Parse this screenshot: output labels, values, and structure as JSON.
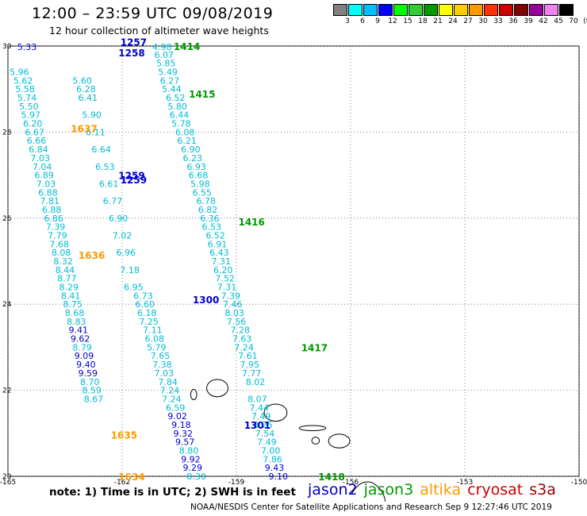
{
  "title": "12:00 – 23:59 UTC 09/08/2019",
  "subtitle": "12 hour collection of altimeter wave heights",
  "note": "note: 1) Time is in UTC; 2) SWH is in feet",
  "credit": "NOAA/NESDIS Center for Satellite Applications and Research   Sep  9 12:27:46 UTC 2019",
  "satellites": [
    {
      "name": "jason2",
      "color": "#0000cc"
    },
    {
      "name": "jason3",
      "color": "#009900"
    },
    {
      "name": "altika",
      "color": "#ff9900"
    },
    {
      "name": "cryosat",
      "color": "#cc0000"
    },
    {
      "name": "s3a",
      "color": "#990000"
    }
  ],
  "colorbar": {
    "labels": [
      "3",
      "6",
      "9",
      "12",
      "15",
      "18",
      "21",
      "24",
      "27",
      "30",
      "33",
      "36",
      "39",
      "42",
      "45",
      "70",
      "(ft)"
    ],
    "colors": [
      "#808080",
      "#00ffff",
      "#00bfff",
      "#0000ff",
      "#00ff00",
      "#33cc33",
      "#009900",
      "#ffff00",
      "#ffcc00",
      "#ff9900",
      "#ff3300",
      "#cc0000",
      "#800000",
      "#990099",
      "#ee82ee",
      "#000000"
    ]
  },
  "map": {
    "lon_range": [
      -165,
      -150
    ],
    "lat_range": [
      20,
      30
    ],
    "lon_ticks": [
      "-165",
      "-162",
      "-159",
      "-156",
      "-153",
      "-150"
    ],
    "lat_ticks": [
      "30",
      "28",
      "26",
      "24",
      "22",
      "20"
    ],
    "lon_tick_values": [
      -165,
      -162,
      -159,
      -156,
      -153,
      -150
    ],
    "lat_tick_values": [
      30,
      28,
      26,
      24,
      22,
      20
    ]
  },
  "pass_labels": [
    {
      "text": "1257",
      "lon": -161.7,
      "lat": 30.08,
      "sat": "jason2"
    },
    {
      "text": "1258",
      "lon": -161.75,
      "lat": 29.83,
      "sat": "jason2"
    },
    {
      "text": "1414",
      "lon": -160.3,
      "lat": 29.98,
      "sat": "jason3"
    },
    {
      "text": "1415",
      "lon": -159.9,
      "lat": 28.87,
      "sat": "jason3"
    },
    {
      "text": "1637",
      "lon": -163.0,
      "lat": 28.07,
      "sat": "altika"
    },
    {
      "text": "1259",
      "lon": -161.75,
      "lat": 26.98,
      "sat": "jason2"
    },
    {
      "text": "1259",
      "lon": -161.7,
      "lat": 26.88,
      "sat": "jason2"
    },
    {
      "text": "1416",
      "lon": -158.6,
      "lat": 25.9,
      "sat": "jason3"
    },
    {
      "text": "1636",
      "lon": -162.8,
      "lat": 25.13,
      "sat": "altika"
    },
    {
      "text": "1300",
      "lon": -159.8,
      "lat": 24.1,
      "sat": "jason2"
    },
    {
      "text": "1417",
      "lon": -156.95,
      "lat": 22.98,
      "sat": "jason3"
    },
    {
      "text": "1301",
      "lon": -158.45,
      "lat": 21.18,
      "sat": "jason2"
    },
    {
      "text": "1635",
      "lon": -161.95,
      "lat": 20.95,
      "sat": "altika"
    },
    {
      "text": "1418",
      "lon": -156.5,
      "lat": 19.98,
      "sat": "jason3"
    },
    {
      "text": "1634",
      "lon": -161.75,
      "lat": 19.98,
      "sat": "altika"
    }
  ],
  "observations": [
    {
      "v": "5.33",
      "lon": -164.5,
      "lat": 29.98,
      "sat": "jason2"
    },
    {
      "v": "4.98",
      "lon": -160.95,
      "lat": 29.98,
      "sat": "jason3"
    },
    {
      "v": "6.07",
      "lon": -160.9,
      "lat": 29.8,
      "sat": "jason3"
    },
    {
      "v": "5.85",
      "lon": -160.85,
      "lat": 29.6,
      "sat": "jason3"
    },
    {
      "v": "5.49",
      "lon": -160.8,
      "lat": 29.4,
      "sat": "jason3"
    },
    {
      "v": "6.27",
      "lon": -160.75,
      "lat": 29.2,
      "sat": "jason3"
    },
    {
      "v": "5.44",
      "lon": -160.7,
      "lat": 29.0,
      "sat": "jason3"
    },
    {
      "v": "6.52",
      "lon": -160.6,
      "lat": 28.8,
      "sat": "jason3"
    },
    {
      "v": "5.80",
      "lon": -160.55,
      "lat": 28.6,
      "sat": "jason3"
    },
    {
      "v": "6.44",
      "lon": -160.5,
      "lat": 28.4,
      "sat": "jason3"
    },
    {
      "v": "5.78",
      "lon": -160.45,
      "lat": 28.2,
      "sat": "jason3"
    },
    {
      "v": "6.08",
      "lon": -160.35,
      "lat": 28.0,
      "sat": "jason3"
    },
    {
      "v": "6.21",
      "lon": -160.3,
      "lat": 27.8,
      "sat": "jason3"
    },
    {
      "v": "6.90",
      "lon": -160.2,
      "lat": 27.6,
      "sat": "jason3"
    },
    {
      "v": "6.23",
      "lon": -160.15,
      "lat": 27.4,
      "sat": "jason3"
    },
    {
      "v": "6.93",
      "lon": -160.05,
      "lat": 27.2,
      "sat": "jason3"
    },
    {
      "v": "6.68",
      "lon": -160.0,
      "lat": 27.0,
      "sat": "jason3"
    },
    {
      "v": "5.98",
      "lon": -159.95,
      "lat": 26.8,
      "sat": "jason3"
    },
    {
      "v": "6.55",
      "lon": -159.9,
      "lat": 26.6,
      "sat": "jason3"
    },
    {
      "v": "6.78",
      "lon": -159.8,
      "lat": 26.4,
      "sat": "jason3"
    },
    {
      "v": "6.82",
      "lon": -159.75,
      "lat": 26.2,
      "sat": "jason3"
    },
    {
      "v": "6.36",
      "lon": -159.7,
      "lat": 26.0,
      "sat": "jason3"
    },
    {
      "v": "6.53",
      "lon": -159.65,
      "lat": 25.8,
      "sat": "jason3"
    },
    {
      "v": "6.52",
      "lon": -159.55,
      "lat": 25.6,
      "sat": "jason3"
    },
    {
      "v": "6.91",
      "lon": -159.5,
      "lat": 25.4,
      "sat": "jason3"
    },
    {
      "v": "6.43",
      "lon": -159.45,
      "lat": 25.2,
      "sat": "jason3"
    },
    {
      "v": "7.31",
      "lon": -159.4,
      "lat": 25.0,
      "sat": "jason3"
    },
    {
      "v": "6.20",
      "lon": -159.35,
      "lat": 24.8,
      "sat": "jason3"
    },
    {
      "v": "7.52",
      "lon": -159.3,
      "lat": 24.6,
      "sat": "jason3"
    },
    {
      "v": "7.31",
      "lon": -159.25,
      "lat": 24.4,
      "sat": "jason3"
    },
    {
      "v": "7.39",
      "lon": -159.15,
      "lat": 24.2,
      "sat": "jason3"
    },
    {
      "v": "7.46",
      "lon": -159.1,
      "lat": 24.0,
      "sat": "jason3"
    },
    {
      "v": "8.03",
      "lon": -159.05,
      "lat": 23.8,
      "sat": "jason3"
    },
    {
      "v": "7.56",
      "lon": -159.0,
      "lat": 23.6,
      "sat": "jason3"
    },
    {
      "v": "7.28",
      "lon": -158.9,
      "lat": 23.4,
      "sat": "jason3"
    },
    {
      "v": "7.63",
      "lon": -158.85,
      "lat": 23.2,
      "sat": "jason3"
    },
    {
      "v": "7.24",
      "lon": -158.8,
      "lat": 23.0,
      "sat": "jason3"
    },
    {
      "v": "7.61",
      "lon": -158.7,
      "lat": 22.8,
      "sat": "jason3"
    },
    {
      "v": "7.95",
      "lon": -158.65,
      "lat": 22.6,
      "sat": "jason3"
    },
    {
      "v": "7.77",
      "lon": -158.6,
      "lat": 22.4,
      "sat": "jason3"
    },
    {
      "v": "8.02",
      "lon": -158.5,
      "lat": 22.2,
      "sat": "jason3"
    },
    {
      "v": "8.07",
      "lon": -158.45,
      "lat": 21.8,
      "sat": "jason3"
    },
    {
      "v": "7.44",
      "lon": -158.4,
      "lat": 21.6,
      "sat": "jason3"
    },
    {
      "v": "7.49",
      "lon": -158.35,
      "lat": 21.4,
      "sat": "jason3"
    },
    {
      "v": "8.25",
      "lon": -158.3,
      "lat": 21.2,
      "sat": "jason3"
    },
    {
      "v": "7.54",
      "lon": -158.25,
      "lat": 21.0,
      "sat": "jason3"
    },
    {
      "v": "7.49",
      "lon": -158.2,
      "lat": 20.8,
      "sat": "jason3"
    },
    {
      "v": "7.00",
      "lon": -158.1,
      "lat": 20.6,
      "sat": "jason3"
    },
    {
      "v": "7.86",
      "lon": -158.05,
      "lat": 20.4,
      "sat": "jason3"
    },
    {
      "v": "9.43",
      "lon": -158.0,
      "lat": 20.2,
      "sat": "jason2"
    },
    {
      "v": "9.10",
      "lon": -157.9,
      "lat": 20.0,
      "sat": "jason2"
    },
    {
      "v": "5.60",
      "lon": -163.05,
      "lat": 29.2,
      "sat": "jason3"
    },
    {
      "v": "6.28",
      "lon": -162.95,
      "lat": 29.0,
      "sat": "jason3"
    },
    {
      "v": "6.41",
      "lon": -162.9,
      "lat": 28.8,
      "sat": "jason3"
    },
    {
      "v": "5.90",
      "lon": -162.8,
      "lat": 28.4,
      "sat": "jason3"
    },
    {
      "v": "6.11",
      "lon": -162.7,
      "lat": 28.0,
      "sat": "jason3"
    },
    {
      "v": "6.64",
      "lon": -162.55,
      "lat": 27.6,
      "sat": "jason3"
    },
    {
      "v": "6.53",
      "lon": -162.45,
      "lat": 27.2,
      "sat": "jason3"
    },
    {
      "v": "6.61",
      "lon": -162.35,
      "lat": 26.8,
      "sat": "jason3"
    },
    {
      "v": "6.77",
      "lon": -162.25,
      "lat": 26.4,
      "sat": "jason3"
    },
    {
      "v": "6.90",
      "lon": -162.1,
      "lat": 26.0,
      "sat": "jason3"
    },
    {
      "v": "7.02",
      "lon": -162.0,
      "lat": 25.6,
      "sat": "jason3"
    },
    {
      "v": "6.96",
      "lon": -161.9,
      "lat": 25.2,
      "sat": "jason3"
    },
    {
      "v": "7.18",
      "lon": -161.8,
      "lat": 24.8,
      "sat": "jason3"
    },
    {
      "v": "6.95",
      "lon": -161.7,
      "lat": 24.4,
      "sat": "jason3"
    },
    {
      "v": "6.73",
      "lon": -161.45,
      "lat": 24.2,
      "sat": "jason3"
    },
    {
      "v": "6.60",
      "lon": -161.4,
      "lat": 24.0,
      "sat": "jason3"
    },
    {
      "v": "6.18",
      "lon": -161.35,
      "lat": 23.8,
      "sat": "jason3"
    },
    {
      "v": "7.25",
      "lon": -161.3,
      "lat": 23.6,
      "sat": "jason3"
    },
    {
      "v": "7.11",
      "lon": -161.2,
      "lat": 23.4,
      "sat": "jason3"
    },
    {
      "v": "6.08",
      "lon": -161.15,
      "lat": 23.2,
      "sat": "jason3"
    },
    {
      "v": "5.79",
      "lon": -161.1,
      "lat": 23.0,
      "sat": "jason3"
    },
    {
      "v": "7.65",
      "lon": -161.0,
      "lat": 22.8,
      "sat": "jason3"
    },
    {
      "v": "7.38",
      "lon": -160.95,
      "lat": 22.6,
      "sat": "jason3"
    },
    {
      "v": "7.03",
      "lon": -160.9,
      "lat": 22.4,
      "sat": "jason3"
    },
    {
      "v": "7.84",
      "lon": -160.8,
      "lat": 22.2,
      "sat": "jason3"
    },
    {
      "v": "7.24",
      "lon": -160.75,
      "lat": 22.0,
      "sat": "jason3"
    },
    {
      "v": "7.24",
      "lon": -160.7,
      "lat": 21.8,
      "sat": "jason3"
    },
    {
      "v": "6.59",
      "lon": -160.6,
      "lat": 21.6,
      "sat": "jason3"
    },
    {
      "v": "9.02",
      "lon": -160.55,
      "lat": 21.4,
      "sat": "jason2"
    },
    {
      "v": "9.18",
      "lon": -160.45,
      "lat": 21.2,
      "sat": "jason2"
    },
    {
      "v": "9.32",
      "lon": -160.4,
      "lat": 21.0,
      "sat": "jason2"
    },
    {
      "v": "9.57",
      "lon": -160.35,
      "lat": 20.8,
      "sat": "jason2"
    },
    {
      "v": "8.80",
      "lon": -160.25,
      "lat": 20.6,
      "sat": "jason3"
    },
    {
      "v": "9.92",
      "lon": -160.2,
      "lat": 20.4,
      "sat": "jason2"
    },
    {
      "v": "9.29",
      "lon": -160.15,
      "lat": 20.2,
      "sat": "jason2"
    },
    {
      "v": "8.30",
      "lon": -160.05,
      "lat": 20.0,
      "sat": "jason3"
    },
    {
      "v": "5.96",
      "lon": -164.7,
      "lat": 29.4,
      "sat": "jason3"
    },
    {
      "v": "5.62",
      "lon": -164.6,
      "lat": 29.2,
      "sat": "jason3"
    },
    {
      "v": "5.58",
      "lon": -164.55,
      "lat": 29.0,
      "sat": "jason3"
    },
    {
      "v": "5.74",
      "lon": -164.5,
      "lat": 28.8,
      "sat": "jason3"
    },
    {
      "v": "5.50",
      "lon": -164.45,
      "lat": 28.6,
      "sat": "jason3"
    },
    {
      "v": "5.97",
      "lon": -164.4,
      "lat": 28.4,
      "sat": "jason3"
    },
    {
      "v": "6.20",
      "lon": -164.35,
      "lat": 28.2,
      "sat": "jason3"
    },
    {
      "v": "6.67",
      "lon": -164.3,
      "lat": 28.0,
      "sat": "jason3"
    },
    {
      "v": "6.66",
      "lon": -164.25,
      "lat": 27.8,
      "sat": "jason3"
    },
    {
      "v": "6.84",
      "lon": -164.2,
      "lat": 27.6,
      "sat": "jason3"
    },
    {
      "v": "7.03",
      "lon": -164.15,
      "lat": 27.4,
      "sat": "jason3"
    },
    {
      "v": "7.04",
      "lon": -164.1,
      "lat": 27.2,
      "sat": "jason3"
    },
    {
      "v": "6.89",
      "lon": -164.05,
      "lat": 27.0,
      "sat": "jason3"
    },
    {
      "v": "7.03",
      "lon": -164.0,
      "lat": 26.8,
      "sat": "jason3"
    },
    {
      "v": "6.88",
      "lon": -163.95,
      "lat": 26.6,
      "sat": "jason3"
    },
    {
      "v": "7.81",
      "lon": -163.9,
      "lat": 26.4,
      "sat": "jason3"
    },
    {
      "v": "6.88",
      "lon": -163.85,
      "lat": 26.2,
      "sat": "jason3"
    },
    {
      "v": "6.86",
      "lon": -163.8,
      "lat": 26.0,
      "sat": "jason3"
    },
    {
      "v": "7.39",
      "lon": -163.75,
      "lat": 25.8,
      "sat": "jason3"
    },
    {
      "v": "7.79",
      "lon": -163.7,
      "lat": 25.6,
      "sat": "jason3"
    },
    {
      "v": "7.68",
      "lon": -163.65,
      "lat": 25.4,
      "sat": "jason3"
    },
    {
      "v": "8.08",
      "lon": -163.6,
      "lat": 25.2,
      "sat": "jason3"
    },
    {
      "v": "8.32",
      "lon": -163.55,
      "lat": 25.0,
      "sat": "jason3"
    },
    {
      "v": "8.44",
      "lon": -163.5,
      "lat": 24.8,
      "sat": "jason3"
    },
    {
      "v": "8.77",
      "lon": -163.45,
      "lat": 24.6,
      "sat": "jason3"
    },
    {
      "v": "8.29",
      "lon": -163.4,
      "lat": 24.4,
      "sat": "jason3"
    },
    {
      "v": "8.41",
      "lon": -163.35,
      "lat": 24.2,
      "sat": "jason3"
    },
    {
      "v": "8.75",
      "lon": -163.3,
      "lat": 24.0,
      "sat": "jason3"
    },
    {
      "v": "8.68",
      "lon": -163.25,
      "lat": 23.8,
      "sat": "jason3"
    },
    {
      "v": "8.83",
      "lon": -163.2,
      "lat": 23.6,
      "sat": "jason3"
    },
    {
      "v": "9.41",
      "lon": -163.15,
      "lat": 23.4,
      "sat": "jason2"
    },
    {
      "v": "9.62",
      "lon": -163.1,
      "lat": 23.2,
      "sat": "jason2"
    },
    {
      "v": "8.79",
      "lon": -163.05,
      "lat": 23.0,
      "sat": "jason3"
    },
    {
      "v": "9.09",
      "lon": -163.0,
      "lat": 22.8,
      "sat": "jason2"
    },
    {
      "v": "9.40",
      "lon": -162.95,
      "lat": 22.6,
      "sat": "jason2"
    },
    {
      "v": "9.59",
      "lon": -162.9,
      "lat": 22.4,
      "sat": "jason2"
    },
    {
      "v": "8.70",
      "lon": -162.85,
      "lat": 22.2,
      "sat": "jason3"
    },
    {
      "v": "8.59",
      "lon": -162.8,
      "lat": 22.0,
      "sat": "jason3"
    },
    {
      "v": "8.67",
      "lon": -162.75,
      "lat": 21.8,
      "sat": "jason3"
    }
  ],
  "islands": [
    {
      "name": "Kauai",
      "lon": -159.5,
      "lat": 22.05,
      "rlon": 0.28,
      "rlat": 0.2
    },
    {
      "name": "Oahu",
      "lon": -157.97,
      "lat": 21.48,
      "rlon": 0.3,
      "rlat": 0.2
    },
    {
      "name": "Molokai",
      "lon": -157.0,
      "lat": 21.12,
      "rlon": 0.35,
      "rlat": 0.06
    },
    {
      "name": "Maui",
      "lon": -156.3,
      "lat": 20.82,
      "rlon": 0.28,
      "rlat": 0.16
    },
    {
      "name": "Lanai",
      "lon": -156.92,
      "lat": 20.83,
      "rlon": 0.1,
      "rlat": 0.08
    },
    {
      "name": "Niihau",
      "lon": -160.12,
      "lat": 21.9,
      "rlon": 0.08,
      "rlat": 0.12
    }
  ]
}
